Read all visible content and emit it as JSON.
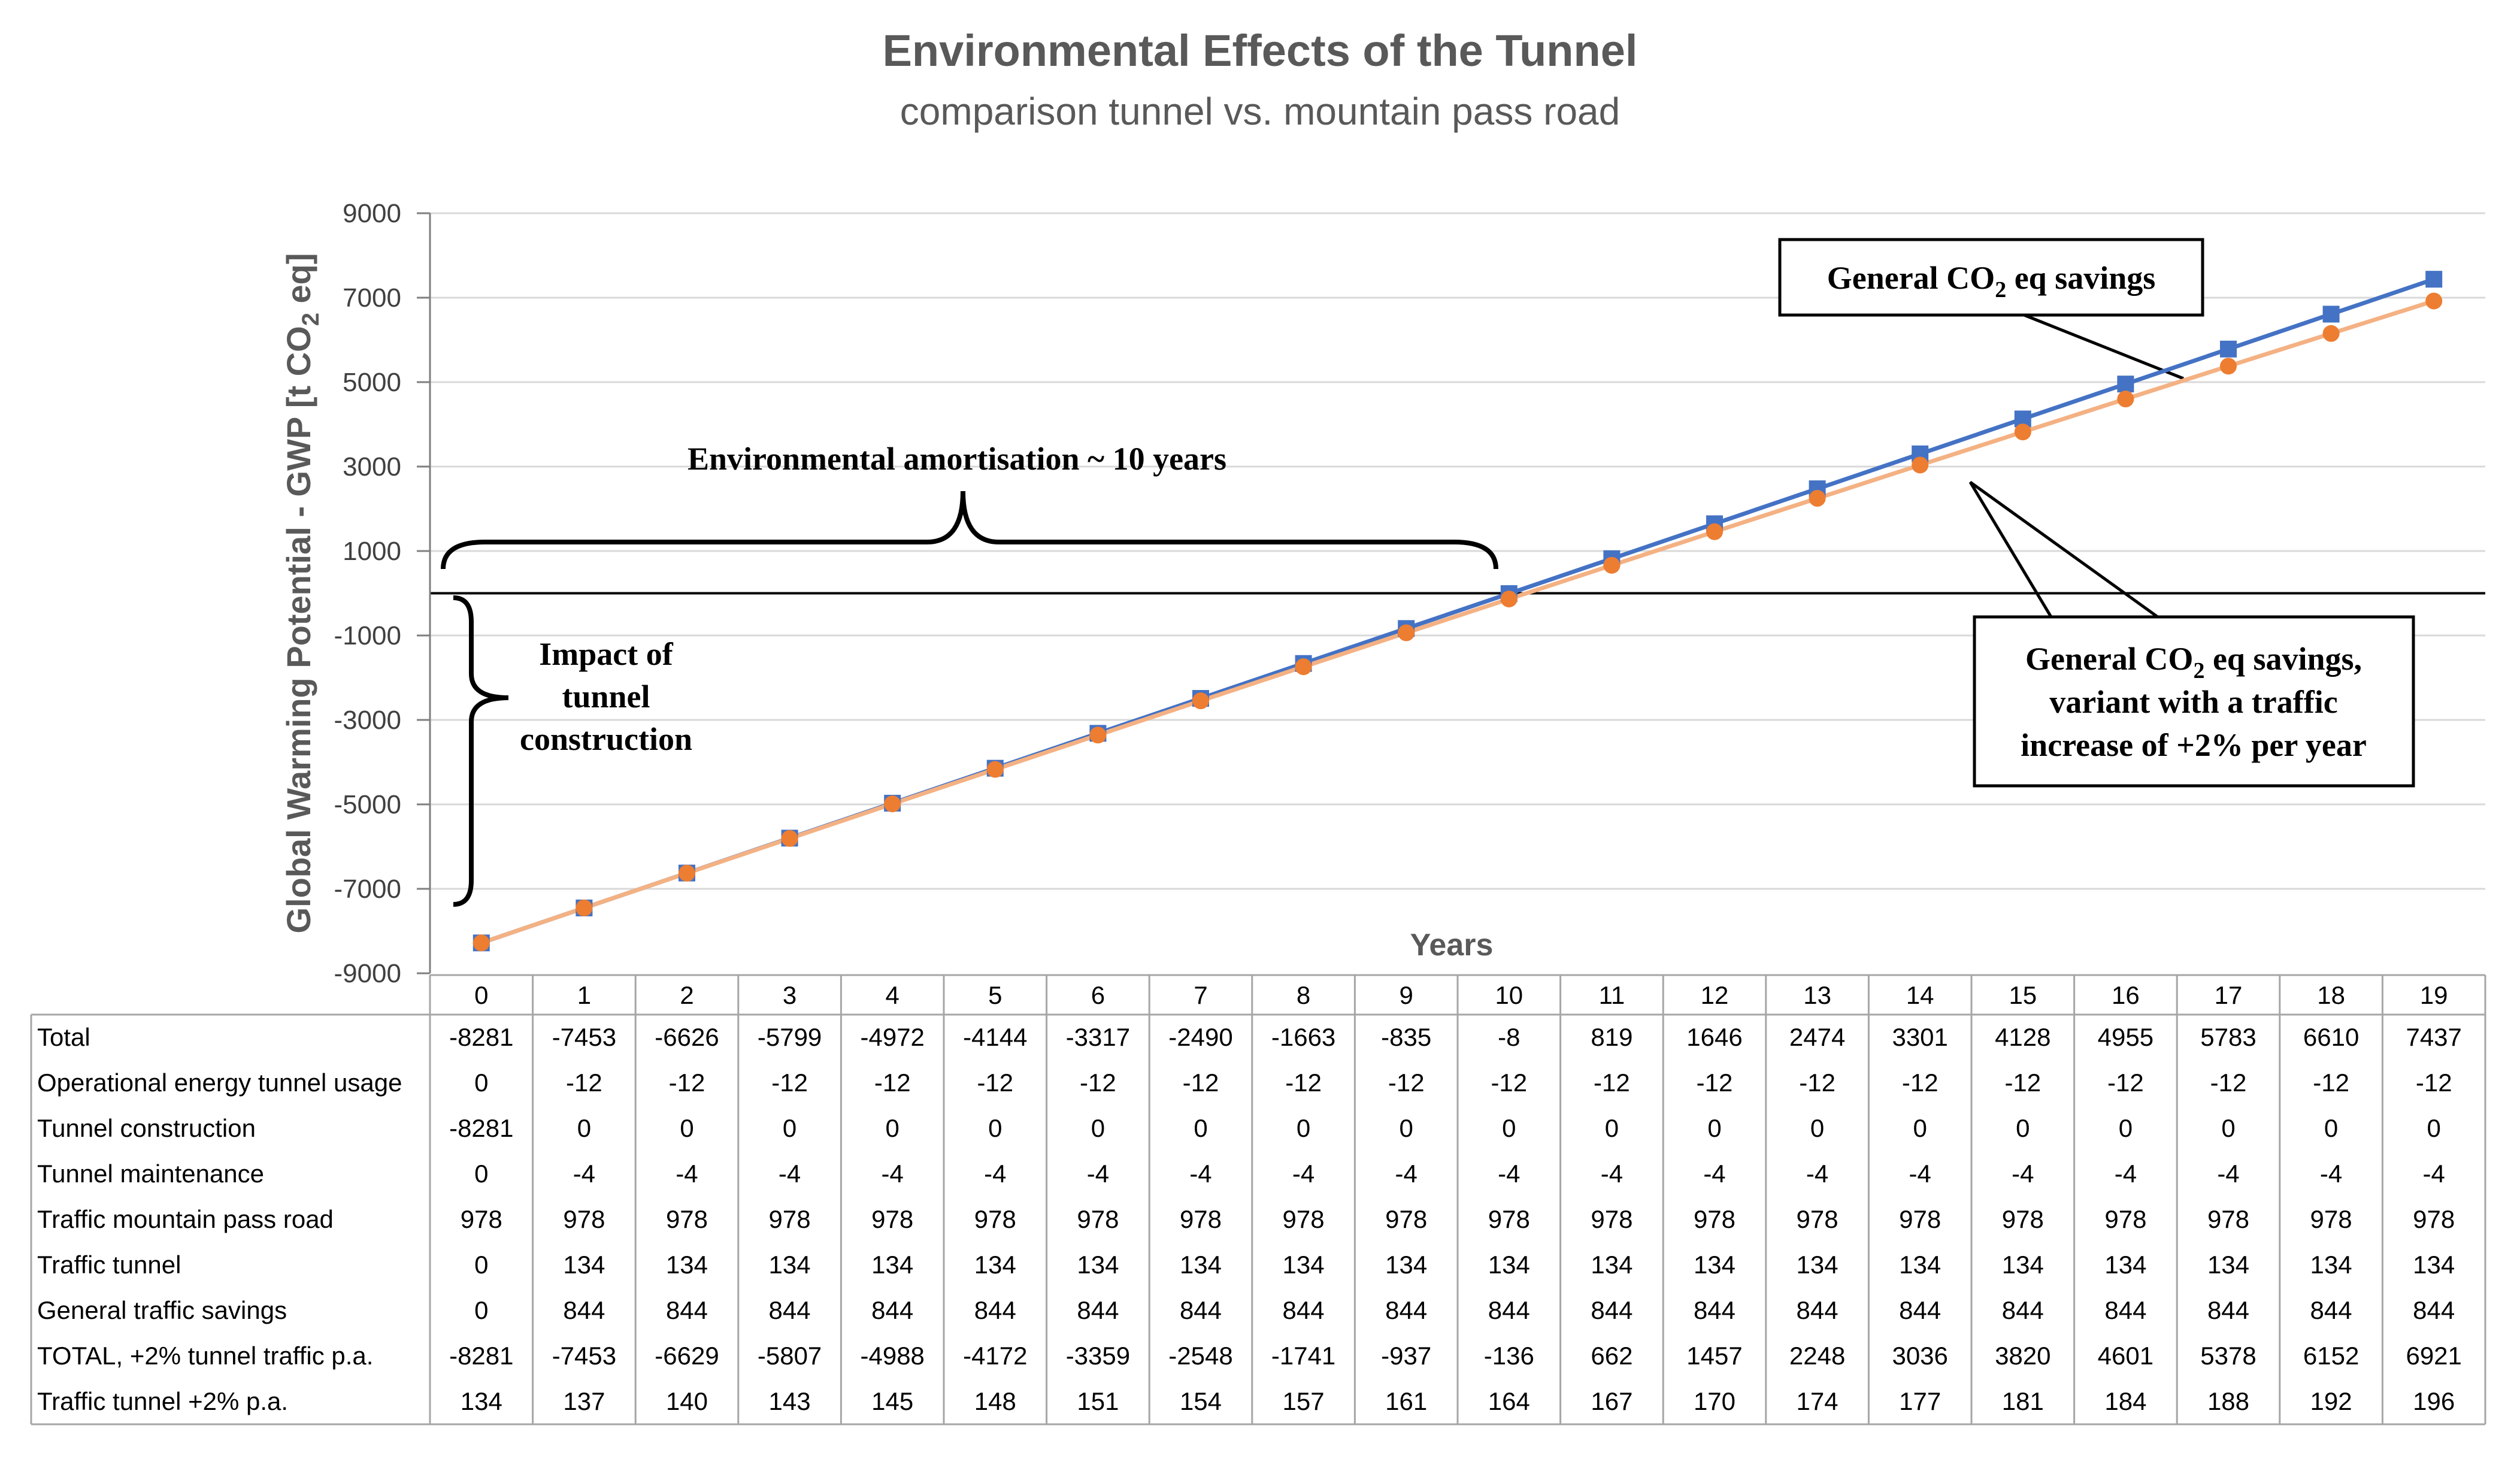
{
  "chart_data": {
    "type": "line",
    "title": "Environmental Effects of the Tunnel",
    "subtitle": "comparison tunnel vs. mountain pass road",
    "ylabel_parts": [
      "Global Warming Potential - GWP [t CO",
      "2",
      " eq]"
    ],
    "xlabel": "Years",
    "ylim": [
      -9000,
      9000
    ],
    "yticks": [
      9000,
      7000,
      5000,
      3000,
      1000,
      -1000,
      -3000,
      -5000,
      -7000,
      -9000
    ],
    "categories": [
      0,
      1,
      2,
      3,
      4,
      5,
      6,
      7,
      8,
      9,
      10,
      11,
      12,
      13,
      14,
      15,
      16,
      17,
      18,
      19
    ],
    "series": [
      {
        "name": "Total",
        "color": "#4472C4",
        "marker": "square",
        "values": [
          -8281,
          -7453,
          -6626,
          -5799,
          -4972,
          -4144,
          -3317,
          -2490,
          -1663,
          -835,
          -8,
          819,
          1646,
          2474,
          3301,
          4128,
          4955,
          5783,
          6610,
          7437
        ]
      },
      {
        "name": "TOTAL, +2% tunnel traffic p.a.",
        "color": "#ED7D31",
        "line_color": "#F4B183",
        "marker": "circle",
        "values": [
          -8281,
          -7453,
          -6629,
          -5807,
          -4988,
          -4172,
          -3359,
          -2548,
          -1741,
          -937,
          -136,
          662,
          1457,
          2248,
          3036,
          3820,
          4601,
          5378,
          6152,
          6921
        ]
      }
    ],
    "annotations": {
      "amortisation": "Environmental amortisation ~ 10 years",
      "impact": [
        "Impact of",
        "tunnel",
        "construction"
      ],
      "savings": [
        "General CO",
        "2",
        " eq savings"
      ],
      "variant_line1": [
        "General CO",
        "2",
        " eq savings,"
      ],
      "variant_line2": "variant with a traffic",
      "variant_line3": "increase of +2% per year"
    },
    "table": {
      "rows": [
        {
          "label": "Total",
          "values": [
            -8281,
            -7453,
            -6626,
            -5799,
            -4972,
            -4144,
            -3317,
            -2490,
            -1663,
            -835,
            -8,
            819,
            1646,
            2474,
            3301,
            4128,
            4955,
            5783,
            6610,
            7437
          ]
        },
        {
          "label": "Operational energy tunnel usage",
          "values": [
            0,
            -12,
            -12,
            -12,
            -12,
            -12,
            -12,
            -12,
            -12,
            -12,
            -12,
            -12,
            -12,
            -12,
            -12,
            -12,
            -12,
            -12,
            -12,
            -12
          ]
        },
        {
          "label": "Tunnel construction",
          "values": [
            -8281,
            0,
            0,
            0,
            0,
            0,
            0,
            0,
            0,
            0,
            0,
            0,
            0,
            0,
            0,
            0,
            0,
            0,
            0,
            0
          ]
        },
        {
          "label": "Tunnel maintenance",
          "values": [
            0,
            -4,
            -4,
            -4,
            -4,
            -4,
            -4,
            -4,
            -4,
            -4,
            -4,
            -4,
            -4,
            -4,
            -4,
            -4,
            -4,
            -4,
            -4,
            -4
          ]
        },
        {
          "label": "Traffic mountain pass road",
          "values": [
            978,
            978,
            978,
            978,
            978,
            978,
            978,
            978,
            978,
            978,
            978,
            978,
            978,
            978,
            978,
            978,
            978,
            978,
            978,
            978
          ]
        },
        {
          "label": "Traffic tunnel",
          "values": [
            0,
            134,
            134,
            134,
            134,
            134,
            134,
            134,
            134,
            134,
            134,
            134,
            134,
            134,
            134,
            134,
            134,
            134,
            134,
            134
          ]
        },
        {
          "label": "General traffic savings",
          "values": [
            0,
            844,
            844,
            844,
            844,
            844,
            844,
            844,
            844,
            844,
            844,
            844,
            844,
            844,
            844,
            844,
            844,
            844,
            844,
            844
          ]
        },
        {
          "label": "TOTAL, +2% tunnel traffic p.a.",
          "values": [
            -8281,
            -7453,
            -6629,
            -5807,
            -4988,
            -4172,
            -3359,
            -2548,
            -1741,
            -937,
            -136,
            662,
            1457,
            2248,
            3036,
            3820,
            4601,
            5378,
            6152,
            6921
          ]
        },
        {
          "label": "Traffic tunnel +2% p.a.",
          "values": [
            134,
            137,
            140,
            143,
            145,
            148,
            151,
            154,
            157,
            161,
            164,
            167,
            170,
            174,
            177,
            181,
            184,
            188,
            192,
            196
          ]
        }
      ]
    }
  }
}
